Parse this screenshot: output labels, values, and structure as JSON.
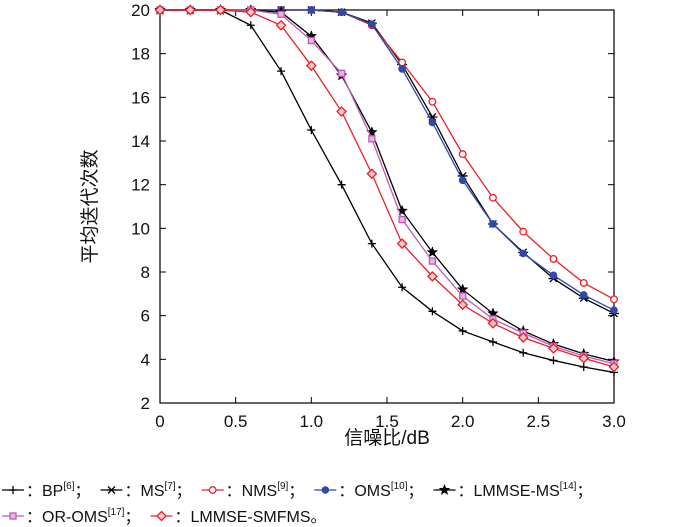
{
  "chart_data": {
    "type": "line",
    "xlabel": "信噪比/dB",
    "ylabel": "平均迭代次数",
    "xlim": [
      0,
      3.0
    ],
    "ylim": [
      2,
      20
    ],
    "xticks": [
      "0",
      "0.5",
      "1.0",
      "1.5",
      "2.0",
      "2.5",
      "3.0"
    ],
    "yticks": [
      "2",
      "4",
      "6",
      "8",
      "10",
      "12",
      "14",
      "16",
      "18",
      "20"
    ],
    "grid": false,
    "legend_position": "bottom",
    "x": [
      0,
      0.2,
      0.4,
      0.6,
      0.8,
      1.0,
      1.2,
      1.4,
      1.6,
      1.8,
      2.0,
      2.2,
      2.4,
      2.6,
      2.8,
      3.0
    ],
    "series": [
      {
        "name": "BP",
        "ref": "[6]",
        "marker": "plus",
        "color": "#000000",
        "values": [
          20,
          20,
          20,
          19.3,
          17.2,
          14.5,
          12.0,
          9.3,
          7.3,
          6.2,
          5.3,
          4.8,
          4.3,
          3.95,
          3.65,
          3.4
        ]
      },
      {
        "name": "MS",
        "ref": "[7]",
        "marker": "x-line",
        "color": "#000000",
        "values": [
          20,
          20,
          20,
          20,
          20,
          20,
          19.9,
          19.4,
          17.5,
          15.1,
          12.4,
          10.2,
          8.9,
          7.7,
          6.8,
          6.1
        ]
      },
      {
        "name": "NMS",
        "ref": "[9]",
        "marker": "open-circle",
        "color": "#e8202a",
        "values": [
          20,
          20,
          20,
          20,
          20,
          20,
          19.9,
          19.3,
          17.6,
          15.8,
          13.4,
          11.4,
          9.85,
          8.6,
          7.5,
          6.75
        ]
      },
      {
        "name": "OMS",
        "ref": "[10]",
        "marker": "filled-circle",
        "color": "#2f49a8",
        "values": [
          20,
          20,
          20,
          20,
          20,
          20,
          19.9,
          19.35,
          17.3,
          14.85,
          12.2,
          10.2,
          8.85,
          7.85,
          6.95,
          6.25
        ]
      },
      {
        "name": "LMMSE-MS",
        "ref": "[14]",
        "marker": "star",
        "color": "#000000",
        "values": [
          20,
          20,
          20,
          20,
          19.9,
          18.8,
          17.0,
          14.4,
          10.8,
          8.9,
          7.2,
          6.1,
          5.3,
          4.7,
          4.25,
          3.9
        ]
      },
      {
        "name": "OR-OMS",
        "ref": "[17]",
        "marker": "square",
        "color": "#c259b6",
        "values": [
          20,
          20,
          20,
          20,
          19.8,
          18.6,
          17.1,
          14.1,
          10.4,
          8.5,
          6.9,
          5.85,
          5.2,
          4.6,
          4.15,
          3.8
        ]
      },
      {
        "name": "LMMSE-SMFMS",
        "ref": "",
        "marker": "diamond",
        "color": "#e8202a",
        "values": [
          20,
          20,
          20,
          19.9,
          19.3,
          17.45,
          15.35,
          12.5,
          9.3,
          7.8,
          6.5,
          5.65,
          5.0,
          4.5,
          4.05,
          3.65
        ]
      }
    ]
  },
  "legend": {
    "separator": "：",
    "row1": [
      {
        "label": "BP",
        "sup": "[6]",
        "suffix": "；"
      },
      {
        "label": "MS",
        "sup": "[7]",
        "suffix": "；"
      },
      {
        "label": "NMS",
        "sup": "[9]",
        "suffix": "；"
      },
      {
        "label": "OMS",
        "sup": "[10]",
        "suffix": "；"
      },
      {
        "label": "LMMSE-MS",
        "sup": "[14]",
        "suffix": "；"
      }
    ],
    "row2": [
      {
        "label": "OR-OMS",
        "sup": "[17]",
        "suffix": "；"
      },
      {
        "label": "LMMSE-SMFMS",
        "sup": "",
        "suffix": "。"
      }
    ]
  }
}
